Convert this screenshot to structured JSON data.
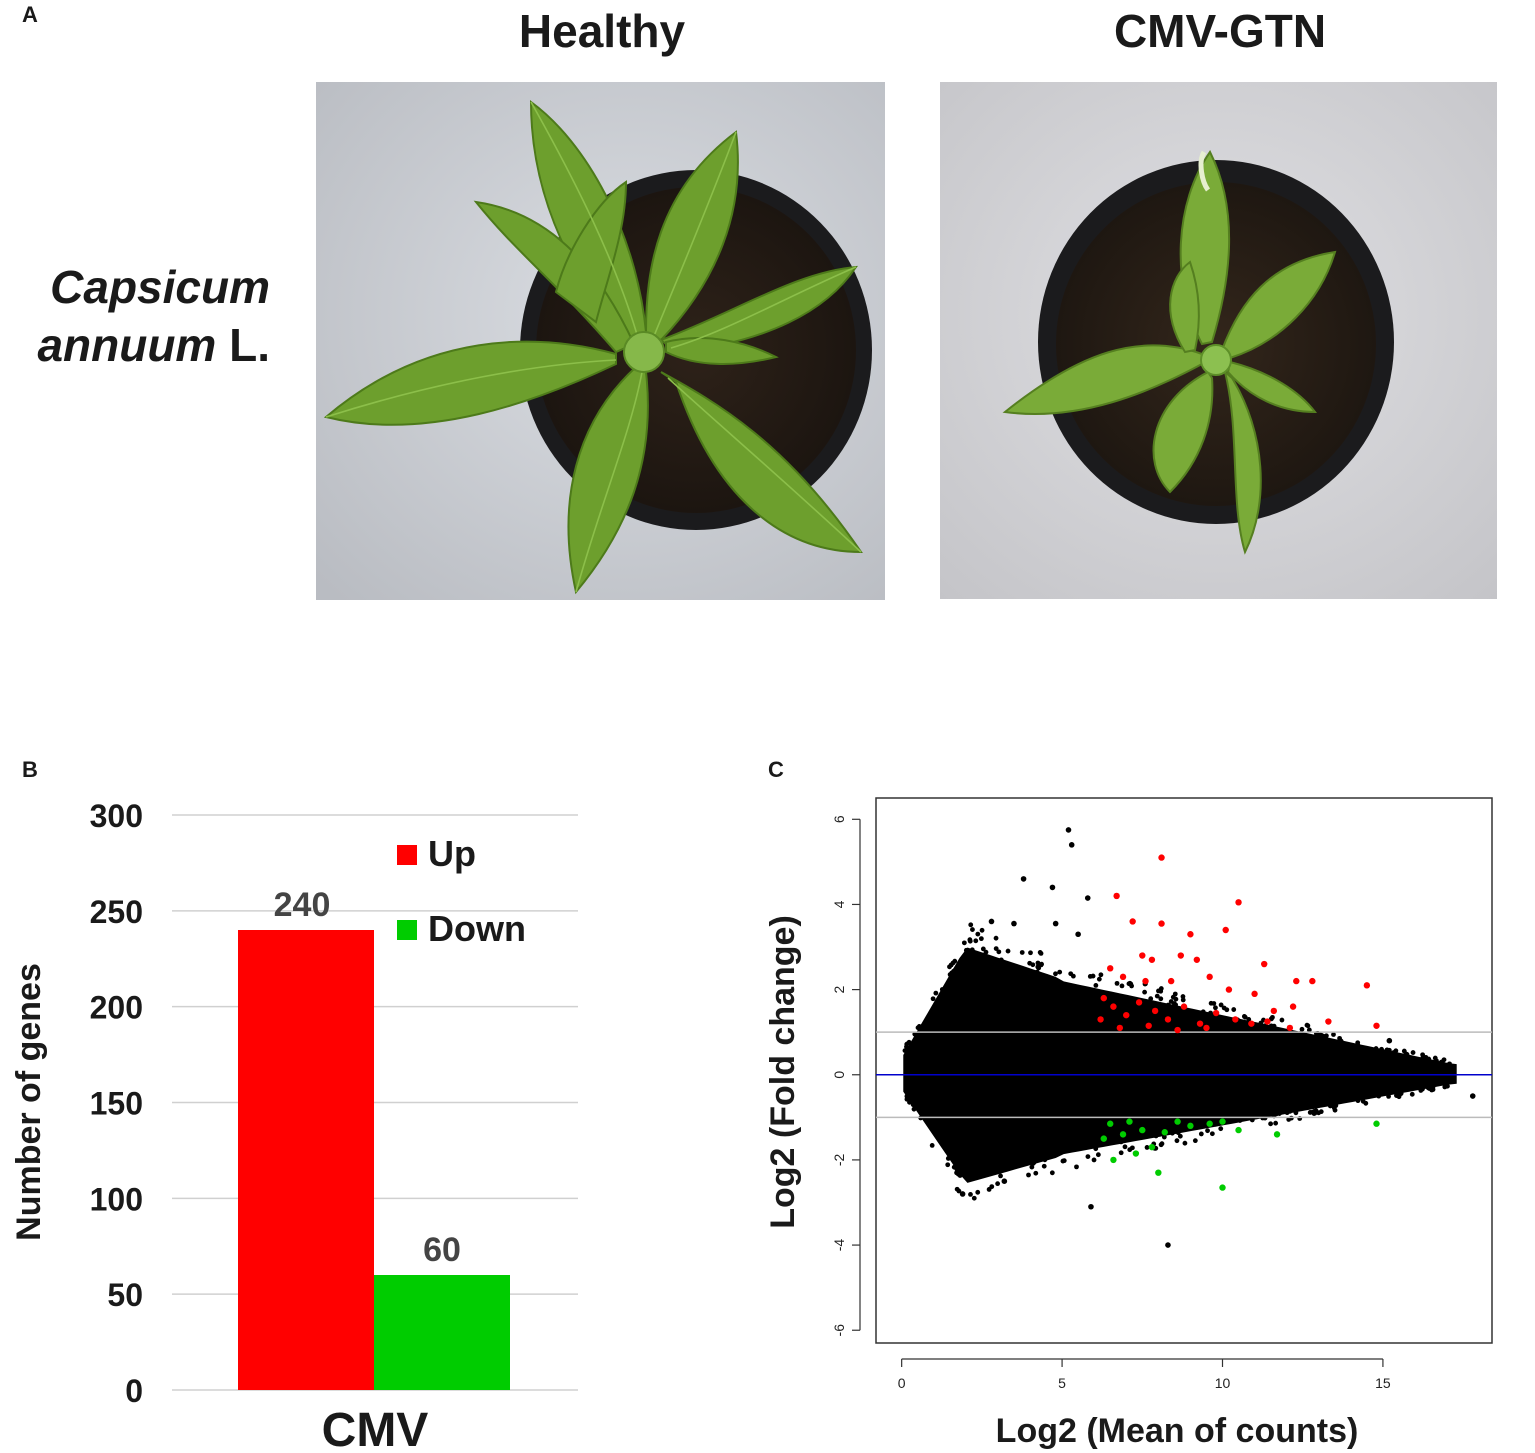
{
  "panelA": {
    "letter": "A",
    "healthy_title": "Healthy",
    "infected_title": "CMV-GTN",
    "species_genus": "Capsicum",
    "species_epithet": "annuum",
    "species_author": "L."
  },
  "panelB": {
    "letter": "B",
    "chart_data": {
      "type": "bar",
      "categories": [
        "CMV"
      ],
      "series": [
        {
          "name": "Up",
          "values": [
            240
          ],
          "color": "#ff0000"
        },
        {
          "name": "Down",
          "values": [
            60
          ],
          "color": "#00cc00"
        }
      ],
      "data_labels": [
        "240",
        "60"
      ],
      "ylabel": "Number of genes",
      "xlabel": "CMV",
      "ylim": [
        0,
        300
      ],
      "yticks": [
        "0",
        "50",
        "100",
        "150",
        "200",
        "250",
        "300"
      ],
      "grid": true,
      "legend_placement": "top-right"
    }
  },
  "panelC": {
    "letter": "C",
    "chart_data": {
      "type": "scatter",
      "xlabel": "Log2 (Mean of counts)",
      "ylabel": "Log2 (Fold change)",
      "xlim": [
        -0.8,
        18.4
      ],
      "ylim": [
        -6.3,
        6.5
      ],
      "xticks": [
        "0",
        "5",
        "10",
        "15"
      ],
      "yticks": [
        "-6",
        "-4",
        "-2",
        "0",
        "2",
        "4",
        "6"
      ],
      "reference_lines": [
        {
          "y": 0,
          "color": "#0000cc"
        },
        {
          "y": 1,
          "color": "#bbbbbb"
        },
        {
          "y": -1,
          "color": "#bbbbbb"
        }
      ],
      "colors": {
        "up": "#ff0000",
        "down": "#00cc00",
        "ns": "#000000"
      },
      "up_points": [
        [
          8.1,
          5.1
        ],
        [
          10.5,
          4.05
        ],
        [
          6.7,
          4.2
        ],
        [
          7.2,
          3.6
        ],
        [
          8.1,
          3.55
        ],
        [
          9.0,
          3.3
        ],
        [
          10.1,
          3.4
        ],
        [
          11.3,
          2.6
        ],
        [
          12.3,
          2.2
        ],
        [
          12.8,
          2.2
        ],
        [
          14.5,
          2.1
        ],
        [
          8.7,
          2.8
        ],
        [
          9.2,
          2.7
        ],
        [
          7.5,
          2.8
        ],
        [
          7.8,
          2.7
        ],
        [
          6.5,
          2.5
        ],
        [
          6.9,
          2.3
        ],
        [
          7.6,
          2.2
        ],
        [
          8.4,
          2.2
        ],
        [
          9.6,
          2.3
        ],
        [
          10.2,
          2.0
        ],
        [
          11.0,
          1.9
        ],
        [
          11.6,
          1.5
        ],
        [
          12.2,
          1.6
        ],
        [
          13.3,
          1.25
        ],
        [
          14.8,
          1.15
        ],
        [
          12.1,
          1.1
        ],
        [
          6.3,
          1.8
        ],
        [
          6.6,
          1.6
        ],
        [
          7.0,
          1.4
        ],
        [
          7.4,
          1.7
        ],
        [
          7.9,
          1.5
        ],
        [
          8.3,
          1.3
        ],
        [
          8.8,
          1.6
        ],
        [
          9.3,
          1.2
        ],
        [
          9.8,
          1.45
        ],
        [
          10.4,
          1.3
        ],
        [
          10.9,
          1.2
        ],
        [
          11.4,
          1.25
        ],
        [
          6.2,
          1.3
        ],
        [
          6.8,
          1.1
        ],
        [
          7.7,
          1.15
        ],
        [
          8.6,
          1.05
        ],
        [
          9.5,
          1.1
        ]
      ],
      "down_points": [
        [
          10.0,
          -2.65
        ],
        [
          8.0,
          -2.3
        ],
        [
          6.6,
          -2.0
        ],
        [
          7.3,
          -1.85
        ],
        [
          7.8,
          -1.7
        ],
        [
          6.3,
          -1.5
        ],
        [
          6.9,
          -1.4
        ],
        [
          7.5,
          -1.3
        ],
        [
          8.2,
          -1.35
        ],
        [
          9.0,
          -1.2
        ],
        [
          9.6,
          -1.15
        ],
        [
          10.5,
          -1.3
        ],
        [
          11.7,
          -1.4
        ],
        [
          14.8,
          -1.15
        ],
        [
          6.5,
          -1.15
        ],
        [
          7.1,
          -1.1
        ],
        [
          8.6,
          -1.1
        ],
        [
          10.0,
          -1.1
        ]
      ],
      "ns_points": [
        [
          5.2,
          5.75
        ],
        [
          5.3,
          5.4
        ],
        [
          3.8,
          4.6
        ],
        [
          4.7,
          4.4
        ],
        [
          5.8,
          4.15
        ],
        [
          2.8,
          3.6
        ],
        [
          3.5,
          3.55
        ],
        [
          4.8,
          3.55
        ],
        [
          5.5,
          3.3
        ],
        [
          15.2,
          0.8
        ],
        [
          16.3,
          0.15
        ],
        [
          17.8,
          -0.5
        ],
        [
          5.9,
          -3.1
        ],
        [
          8.3,
          -4.0
        ],
        [
          1.9,
          -2.8
        ],
        [
          3.2,
          -2.5
        ]
      ]
    }
  }
}
